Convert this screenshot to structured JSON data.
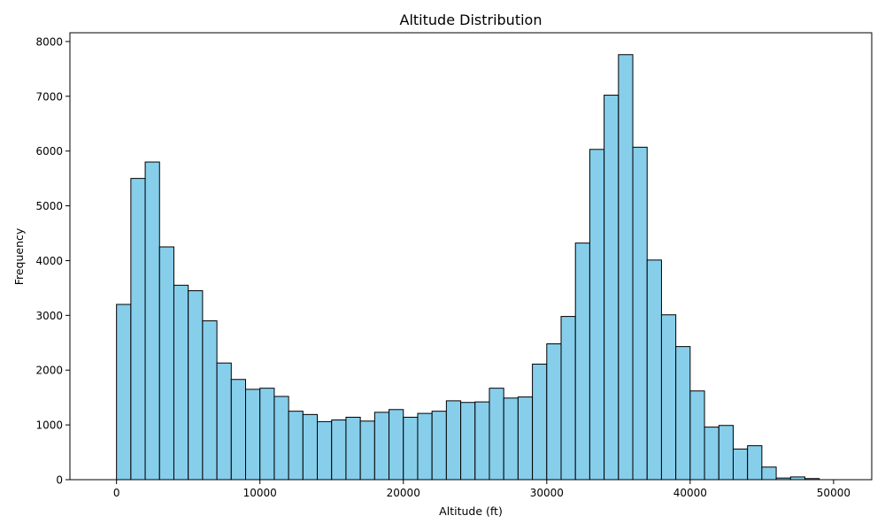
{
  "chart_data": {
    "type": "bar",
    "title": "Altitude Distribution",
    "xlabel": "Altitude (ft)",
    "ylabel": "Frequency",
    "xlim": [
      -3250,
      52660
    ],
    "ylim": [
      0,
      8160
    ],
    "xticks": [
      0,
      10000,
      20000,
      30000,
      40000,
      50000
    ],
    "yticks": [
      0,
      1000,
      2000,
      3000,
      4000,
      5000,
      6000,
      7000,
      8000
    ],
    "bin_start": -1000,
    "bin_width": 1000,
    "values": [
      0,
      3200,
      5500,
      5800,
      4250,
      3550,
      3450,
      2900,
      2130,
      1830,
      1650,
      1670,
      1520,
      1250,
      1190,
      1060,
      1090,
      1140,
      1070,
      1230,
      1280,
      1140,
      1210,
      1250,
      1440,
      1410,
      1420,
      1670,
      1490,
      1510,
      2110,
      2480,
      2980,
      4320,
      6030,
      7020,
      7760,
      6070,
      4010,
      3010,
      2430,
      1620,
      960,
      990,
      560,
      620,
      230,
      30,
      50,
      20
    ],
    "bar_color": "#87ceeb",
    "edge_color": "#000000",
    "grid": false,
    "legend": "none"
  }
}
